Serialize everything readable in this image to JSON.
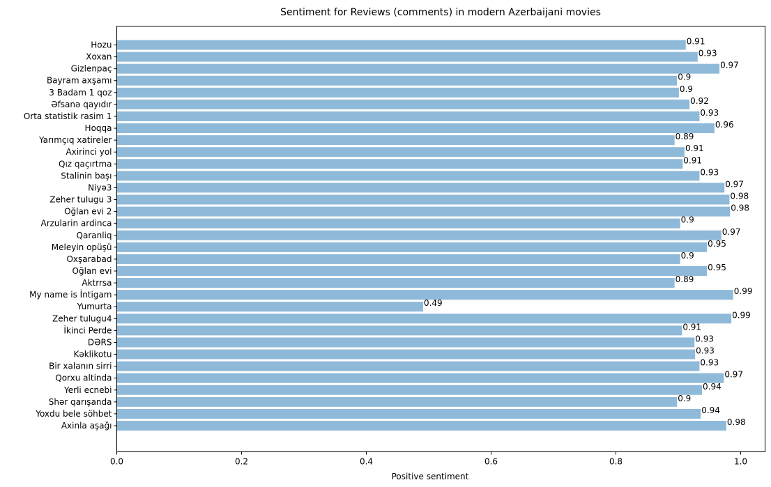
{
  "chart_data": {
    "type": "bar",
    "orientation": "horizontal",
    "title": "Sentiment for Reviews (comments) in modern Azerbaijani movies",
    "xlabel": "Positive sentiment",
    "ylabel": "",
    "xlim": [
      0,
      1.04
    ],
    "xticks": [
      0.0,
      0.2,
      0.4,
      0.6,
      0.8,
      1.0
    ],
    "xtick_labels": [
      "0.0",
      "0.2",
      "0.4",
      "0.6",
      "0.8",
      "1.0"
    ],
    "grid": false,
    "bar_color": "#8fb9d9",
    "categories": [
      "Hozu",
      "Xoxan",
      "Gizlenpaç",
      "Bayram axşamı",
      "3 Badam 1 qoz",
      "Əfsanə qayıdır",
      "Orta statistik rasim 1",
      "Hoqqa",
      "Yarımçıq xatireler",
      "Axirinci yol",
      "Qız qaçırtma",
      "Stalinin başı",
      "Niyə3",
      "Zeher tulugu 3",
      "Oğlan evi 2",
      "Arzularin ardinca",
      "Qaranliq",
      "Meleyin opüşü",
      "Oxşarabad",
      "Oğlan evi",
      "Aktrrsa",
      "My name is İntigam",
      "Yumurta",
      "Zeher tulugu4",
      "İkinci Perde",
      "DƏRS",
      "Kəklikotu",
      "Bir xalanın sirri",
      "Qorxu altinda",
      "Yerli ecnebi",
      "Shər qarışanda",
      "Yoxdu bele söhbet",
      "Axinla aşağı"
    ],
    "values": [
      0.912,
      0.931,
      0.966,
      0.898,
      0.901,
      0.918,
      0.934,
      0.958,
      0.894,
      0.91,
      0.907,
      0.934,
      0.974,
      0.982,
      0.983,
      0.903,
      0.969,
      0.946,
      0.903,
      0.946,
      0.894,
      0.988,
      0.491,
      0.985,
      0.906,
      0.926,
      0.927,
      0.934,
      0.973,
      0.938,
      0.898,
      0.936,
      0.977
    ],
    "value_labels": [
      "0.91",
      "0.93",
      "0.97",
      "0.9",
      "0.9",
      "0.92",
      "0.93",
      "0.96",
      "0.89",
      "0.91",
      "0.91",
      "0.93",
      "0.97",
      "0.98",
      "0.98",
      "0.9",
      "0.97",
      "0.95",
      "0.9",
      "0.95",
      "0.89",
      "0.99",
      "0.49",
      "0.99",
      "0.91",
      "0.93",
      "0.93",
      "0.93",
      "0.97",
      "0.94",
      "0.9",
      "0.94",
      "0.98"
    ]
  }
}
